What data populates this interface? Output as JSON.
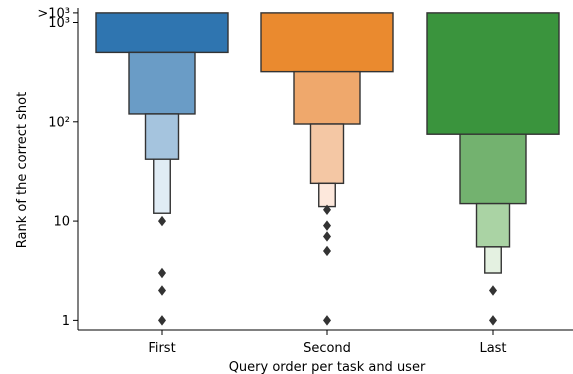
{
  "chart_data": {
    "type": "boxen",
    "xlabel": "Query order per task and user",
    "ylabel": "Rank of the correct shot",
    "categories": [
      "First",
      "Second",
      "Last"
    ],
    "y_scale": "log",
    "ylim": [
      0.8,
      1400
    ],
    "y_ticks": [
      {
        "value": 1,
        "label": "1"
      },
      {
        "value": 10,
        "label": "10"
      },
      {
        "value": 100,
        "label": "10²"
      },
      {
        "value": 1000,
        "label": "10³"
      },
      {
        "value": 1250,
        "label": ">10³"
      }
    ],
    "series": [
      {
        "category": "First",
        "color_levels": [
          "#2f75b0",
          "#6a9cc6",
          "#a5c4de",
          "#e0ecf5"
        ],
        "boxes": [
          {
            "low": 500,
            "high": 1250
          },
          {
            "low": 120,
            "high": 500
          },
          {
            "low": 42,
            "high": 120
          },
          {
            "low": 12,
            "high": 42
          }
        ],
        "outliers": [
          10,
          3,
          2,
          1
        ]
      },
      {
        "category": "Second",
        "color_levels": [
          "#ea8a2f",
          "#efa86c",
          "#f4c7a4",
          "#fde8dc"
        ],
        "boxes": [
          {
            "low": 320,
            "high": 1250
          },
          {
            "low": 95,
            "high": 320
          },
          {
            "low": 24,
            "high": 95
          },
          {
            "low": 14,
            "high": 24
          }
        ],
        "outliers": [
          13,
          9,
          7,
          5,
          1
        ]
      },
      {
        "category": "Last",
        "color_levels": [
          "#3a943d",
          "#73b26f",
          "#aad3a4",
          "#e4f1e1"
        ],
        "boxes": [
          {
            "low": 75,
            "high": 1250
          },
          {
            "low": 15,
            "high": 75
          },
          {
            "low": 5.5,
            "high": 15
          },
          {
            "low": 3,
            "high": 5.5
          }
        ],
        "outliers": [
          2,
          1
        ]
      }
    ]
  }
}
